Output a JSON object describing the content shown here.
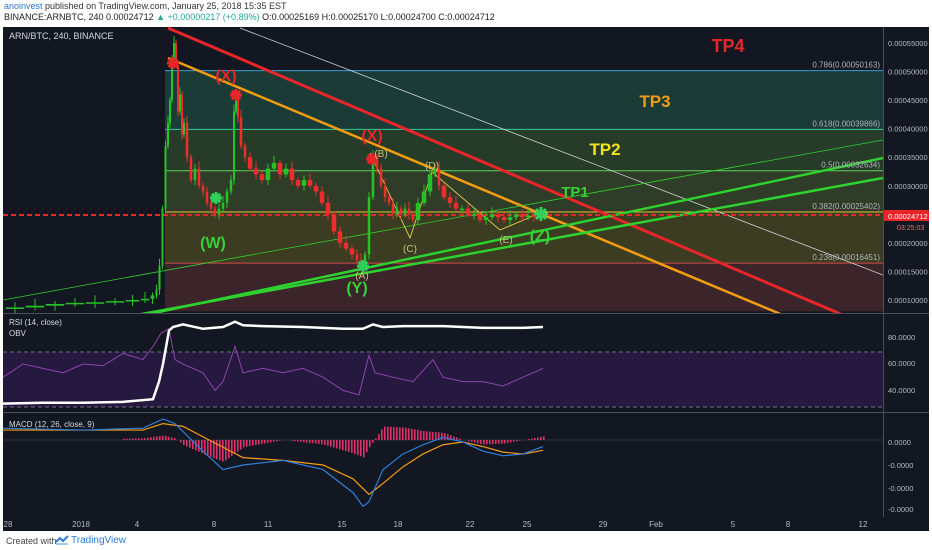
{
  "header": {
    "author": "anoinvest",
    "published": " published on TradingView.com, January 25, 2018 15:35 EST",
    "symbol_line": "BINANCE:ARNBTC, 240  0.00024712",
    "change": "▲ +0.00000217 (+0.89%)",
    "ohlc": " O:0.00025169  H:0.00025170  L:0.00024700  C:0.00024712"
  },
  "footer": {
    "created_with": "Created with",
    "brand": "TradingView"
  },
  "colors": {
    "bull": "#26c226",
    "bear": "#ef2d2d",
    "tp4": "#e8262a",
    "tp3": "#f39c12",
    "tp2": "#f1e21c",
    "tp1": "#35d335",
    "red_star": "#e8262a",
    "green_star": "#2ed25a",
    "rsi": "#8e44ad",
    "obv": "#ffffff",
    "macd": "#2f7ed8",
    "signal": "#f39c12",
    "hist": "#e0306c",
    "bg": "#131722"
  },
  "chart_data": [
    {
      "type": "candlestick",
      "title": "ARN/BTC, 240, BINANCE",
      "ylim": [
        8e-05,
        0.00058
      ],
      "y_ticks": [
        "0.00055000",
        "0.00050000",
        "0.00045000",
        "0.00040000",
        "0.00035000",
        "0.00030000",
        "0.00025000",
        "0.00020000",
        "0.00015000",
        "0.00010000"
      ],
      "x_ticks": [
        "28",
        "2018",
        "4",
        "8",
        "11",
        "15",
        "18",
        "22",
        "25",
        "29",
        "Feb",
        "5",
        "8",
        "12"
      ],
      "last_price": "0.00024712",
      "countdown": "03:25:03",
      "fib_levels": [
        {
          "label": "0.786(0.00050163)",
          "value": 0.00050163
        },
        {
          "label": "0.618(0.00039866)",
          "value": 0.00039866
        },
        {
          "label": "0.5(0.00032634)",
          "value": 0.00032634
        },
        {
          "label": "0.382(0.00025402)",
          "value": 0.00025402
        },
        {
          "label": "0.236(0.00016451)",
          "value": 0.00016451
        }
      ],
      "targets": [
        "TP4",
        "TP3",
        "TP2",
        "TP1"
      ],
      "wave_labels": [
        "(X)",
        "(X)",
        "(W)",
        "(Y)",
        "(Z)",
        "(A)",
        "(B)",
        "(C)",
        "(D)",
        "(E)"
      ],
      "price_path": [
        [
          0,
          8.5e-05
        ],
        [
          20,
          8.7e-05
        ],
        [
          40,
          9e-05
        ],
        [
          60,
          9.3e-05
        ],
        [
          80,
          9.5e-05
        ],
        [
          100,
          9.6e-05
        ],
        [
          120,
          9.8e-05
        ],
        [
          135,
          0.0001
        ],
        [
          145,
          0.000102
        ],
        [
          150,
          0.000108
        ],
        [
          153,
          0.000118
        ],
        [
          156,
          0.00016
        ],
        [
          159,
          0.00026
        ],
        [
          162,
          0.00037
        ],
        [
          164,
          0.00041
        ],
        [
          166,
          0.00045
        ],
        [
          168,
          0.00052
        ],
        [
          170,
          0.00055
        ],
        [
          172,
          0.00051
        ],
        [
          174,
          0.00043
        ],
        [
          176,
          0.00046
        ],
        [
          178,
          0.00039
        ],
        [
          180,
          0.00041
        ],
        [
          184,
          0.00035
        ],
        [
          188,
          0.00031
        ],
        [
          192,
          0.00033
        ],
        [
          196,
          0.0003
        ],
        [
          200,
          0.00029
        ],
        [
          204,
          0.00027
        ],
        [
          208,
          0.00026
        ],
        [
          212,
          0.00025
        ],
        [
          216,
          0.00026
        ],
        [
          220,
          0.00027
        ],
        [
          224,
          0.00029
        ],
        [
          228,
          0.00031
        ],
        [
          230,
          0.00043
        ],
        [
          232,
          0.00045
        ],
        [
          234,
          0.00042
        ],
        [
          238,
          0.00037
        ],
        [
          242,
          0.00035
        ],
        [
          248,
          0.00033
        ],
        [
          254,
          0.00032
        ],
        [
          260,
          0.00031
        ],
        [
          266,
          0.00033
        ],
        [
          272,
          0.00034
        ],
        [
          278,
          0.00032
        ],
        [
          284,
          0.00033
        ],
        [
          290,
          0.00031
        ],
        [
          296,
          0.0003
        ],
        [
          302,
          0.00031
        ],
        [
          308,
          0.0003
        ],
        [
          314,
          0.00029
        ],
        [
          320,
          0.00027
        ],
        [
          326,
          0.00025
        ],
        [
          332,
          0.00022
        ],
        [
          338,
          0.0002
        ],
        [
          344,
          0.00019
        ],
        [
          350,
          0.00018
        ],
        [
          354,
          0.00017
        ],
        [
          358,
          0.00016
        ],
        [
          362,
          0.00018
        ],
        [
          366,
          0.00028
        ],
        [
          370,
          0.00035
        ],
        [
          374,
          0.00033
        ],
        [
          378,
          0.0003
        ],
        [
          382,
          0.00028
        ],
        [
          386,
          0.00027
        ],
        [
          390,
          0.00025
        ],
        [
          394,
          0.00026
        ],
        [
          398,
          0.00025
        ],
        [
          402,
          0.00026
        ],
        [
          406,
          0.00025
        ],
        [
          410,
          0.00024
        ],
        [
          416,
          0.00027
        ],
        [
          422,
          0.00029
        ],
        [
          428,
          0.00032
        ],
        [
          432,
          0.00033
        ],
        [
          436,
          0.0003
        ],
        [
          442,
          0.00028
        ],
        [
          448,
          0.00027
        ],
        [
          454,
          0.00026
        ],
        [
          460,
          0.00026
        ],
        [
          466,
          0.00025
        ],
        [
          472,
          0.00025
        ],
        [
          478,
          0.00024
        ],
        [
          484,
          0.000245
        ],
        [
          490,
          0.00025
        ],
        [
          496,
          0.000245
        ],
        [
          502,
          0.00024
        ],
        [
          508,
          0.000245
        ],
        [
          514,
          0.00025
        ],
        [
          520,
          0.000245
        ],
        [
          526,
          0.000248
        ],
        [
          532,
          0.000246
        ],
        [
          540,
          0.000247
        ]
      ]
    },
    {
      "type": "line",
      "title": "RSI (14, close)",
      "series2": "OBV",
      "y_ticks": [
        "80.0000",
        "60.0000",
        "40.0000"
      ],
      "obv_path": [
        [
          0,
          0.05
        ],
        [
          40,
          0.06
        ],
        [
          80,
          0.06
        ],
        [
          120,
          0.07
        ],
        [
          150,
          0.1
        ],
        [
          156,
          0.3
        ],
        [
          160,
          0.5
        ],
        [
          166,
          0.88
        ],
        [
          170,
          0.92
        ],
        [
          180,
          0.95
        ],
        [
          200,
          0.9
        ],
        [
          220,
          0.92
        ],
        [
          232,
          0.98
        ],
        [
          240,
          0.94
        ],
        [
          260,
          0.93
        ],
        [
          300,
          0.92
        ],
        [
          340,
          0.9
        ],
        [
          360,
          0.9
        ],
        [
          370,
          0.95
        ],
        [
          380,
          0.92
        ],
        [
          400,
          0.93
        ],
        [
          440,
          0.93
        ],
        [
          480,
          0.91
        ],
        [
          520,
          0.91
        ],
        [
          540,
          0.92
        ]
      ],
      "rsi_path": [
        [
          0,
          0.35
        ],
        [
          20,
          0.5
        ],
        [
          40,
          0.45
        ],
        [
          60,
          0.4
        ],
        [
          80,
          0.5
        ],
        [
          100,
          0.48
        ],
        [
          120,
          0.62
        ],
        [
          140,
          0.55
        ],
        [
          150,
          0.7
        ],
        [
          158,
          0.85
        ],
        [
          166,
          0.9
        ],
        [
          172,
          0.55
        ],
        [
          180,
          0.5
        ],
        [
          200,
          0.4
        ],
        [
          212,
          0.2
        ],
        [
          220,
          0.3
        ],
        [
          232,
          0.7
        ],
        [
          240,
          0.4
        ],
        [
          260,
          0.45
        ],
        [
          280,
          0.4
        ],
        [
          300,
          0.45
        ],
        [
          320,
          0.35
        ],
        [
          340,
          0.2
        ],
        [
          356,
          0.15
        ],
        [
          366,
          0.6
        ],
        [
          372,
          0.4
        ],
        [
          390,
          0.35
        ],
        [
          410,
          0.3
        ],
        [
          430,
          0.55
        ],
        [
          440,
          0.35
        ],
        [
          460,
          0.3
        ],
        [
          480,
          0.3
        ],
        [
          500,
          0.25
        ],
        [
          520,
          0.35
        ],
        [
          540,
          0.45
        ]
      ]
    },
    {
      "type": "line",
      "title": "MACD (12, 26, close, 9)",
      "y_ticks": [
        "0.0000",
        "-0.0000",
        "-0.0000",
        "-0.0000"
      ],
      "macd_path": [
        [
          0,
          0.1
        ],
        [
          80,
          0.12
        ],
        [
          140,
          0.1
        ],
        [
          160,
          0.0
        ],
        [
          172,
          0.05
        ],
        [
          200,
          0.35
        ],
        [
          220,
          0.55
        ],
        [
          240,
          0.5
        ],
        [
          280,
          0.45
        ],
        [
          320,
          0.55
        ],
        [
          350,
          0.8
        ],
        [
          360,
          0.95
        ],
        [
          366,
          0.9
        ],
        [
          380,
          0.55
        ],
        [
          400,
          0.38
        ],
        [
          420,
          0.28
        ],
        [
          440,
          0.2
        ],
        [
          460,
          0.25
        ],
        [
          480,
          0.35
        ],
        [
          500,
          0.4
        ],
        [
          520,
          0.38
        ],
        [
          540,
          0.3
        ]
      ],
      "signal_path": [
        [
          0,
          0.12
        ],
        [
          80,
          0.12
        ],
        [
          140,
          0.12
        ],
        [
          160,
          0.05
        ],
        [
          180,
          0.08
        ],
        [
          210,
          0.25
        ],
        [
          240,
          0.42
        ],
        [
          280,
          0.45
        ],
        [
          320,
          0.5
        ],
        [
          350,
          0.65
        ],
        [
          366,
          0.82
        ],
        [
          380,
          0.7
        ],
        [
          400,
          0.52
        ],
        [
          420,
          0.38
        ],
        [
          440,
          0.28
        ],
        [
          460,
          0.25
        ],
        [
          480,
          0.3
        ],
        [
          500,
          0.36
        ],
        [
          520,
          0.38
        ],
        [
          540,
          0.34
        ]
      ]
    }
  ]
}
